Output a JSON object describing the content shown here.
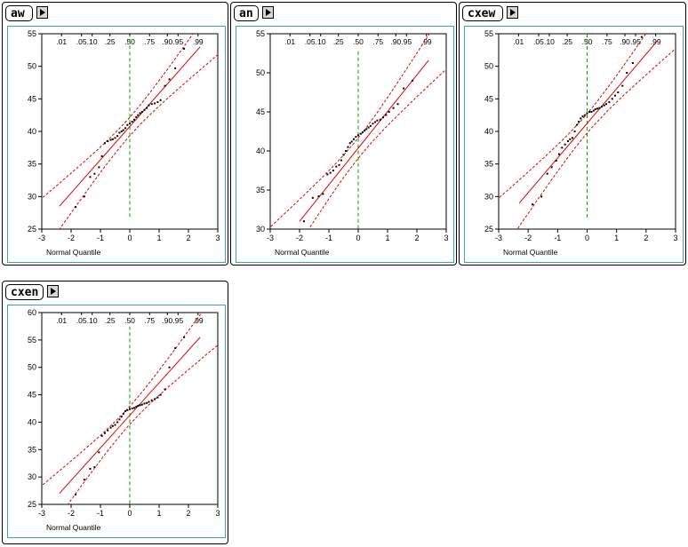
{
  "panels": [
    {
      "id": "aw",
      "title": "aw",
      "chart_data": {
        "type": "scatter",
        "xlabel": "Normal Quantile",
        "xlim": [
          -3,
          3
        ],
        "ylim": [
          25,
          55
        ],
        "xticks": [
          -3,
          -2,
          -1,
          0,
          1,
          2,
          3
        ],
        "yticks": [
          25,
          30,
          35,
          40,
          45,
          50,
          55
        ],
        "prob_ticks": [
          ".01",
          ".05",
          ".10",
          ".25",
          ".50",
          ".75",
          ".90",
          ".95",
          ".99"
        ],
        "line": [
          [
            -2.4,
            28.5
          ],
          [
            2.4,
            53.0
          ]
        ],
        "x": [
          -1.85,
          -1.55,
          -1.35,
          -1.2,
          -1.05,
          -0.95,
          -0.85,
          -0.75,
          -0.65,
          -0.58,
          -0.5,
          -0.42,
          -0.35,
          -0.28,
          -0.22,
          -0.15,
          -0.08,
          0,
          0.08,
          0.15,
          0.22,
          0.28,
          0.35,
          0.42,
          0.5,
          0.58,
          0.65,
          0.75,
          0.85,
          0.95,
          1.05,
          1.2,
          1.35,
          1.55,
          1.85
        ],
        "y": [
          28.4,
          30.0,
          33.0,
          33.5,
          34.5,
          36.2,
          38.2,
          38.5,
          38.7,
          38.8,
          39.0,
          39.3,
          39.8,
          40.0,
          40.2,
          40.5,
          41.0,
          41.2,
          41.5,
          41.8,
          42.2,
          42.5,
          42.8,
          43.0,
          43.3,
          43.6,
          44.0,
          44.2,
          44.3,
          44.5,
          44.8,
          47.0,
          48.0,
          49.7,
          52.7
        ]
      }
    },
    {
      "id": "an",
      "title": "an",
      "chart_data": {
        "type": "scatter",
        "xlabel": "Normal Quantile",
        "xlim": [
          -3,
          3
        ],
        "ylim": [
          30,
          55
        ],
        "xticks": [
          -3,
          -2,
          -1,
          0,
          1,
          2,
          3
        ],
        "yticks": [
          30,
          35,
          40,
          45,
          50,
          55
        ],
        "prob_ticks": [
          ".01",
          ".05",
          ".10",
          ".25",
          ".50",
          ".75",
          ".90",
          ".95",
          ".99"
        ],
        "line": [
          [
            -2.0,
            31.0
          ],
          [
            2.4,
            51.6
          ]
        ],
        "x": [
          -1.85,
          -1.55,
          -1.35,
          -1.2,
          -1.05,
          -0.95,
          -0.85,
          -0.75,
          -0.65,
          -0.58,
          -0.5,
          -0.42,
          -0.35,
          -0.28,
          -0.22,
          -0.15,
          -0.08,
          0,
          0.08,
          0.15,
          0.22,
          0.28,
          0.35,
          0.42,
          0.5,
          0.58,
          0.65,
          0.75,
          0.85,
          0.95,
          1.05,
          1.2,
          1.35,
          1.55,
          1.85
        ],
        "y": [
          31.0,
          34.0,
          34.2,
          34.5,
          37.0,
          37.2,
          37.5,
          38.0,
          38.2,
          38.8,
          39.5,
          40.0,
          40.5,
          41.0,
          41.2,
          41.5,
          41.8,
          42.0,
          42.2,
          42.4,
          42.6,
          42.8,
          43.0,
          43.2,
          43.5,
          43.7,
          43.9,
          44.0,
          44.3,
          44.6,
          45.0,
          45.5,
          46.0,
          48.0,
          49.0
        ]
      }
    },
    {
      "id": "cxew",
      "title": "cxew",
      "chart_data": {
        "type": "scatter",
        "xlabel": "Normal Quantile",
        "xlim": [
          -3,
          3
        ],
        "ylim": [
          25,
          55
        ],
        "xticks": [
          -3,
          -2,
          -1,
          0,
          1,
          2,
          3
        ],
        "yticks": [
          25,
          30,
          35,
          40,
          45,
          50,
          55
        ],
        "prob_ticks": [
          ".01",
          ".05",
          ".10",
          ".25",
          ".50",
          ".75",
          ".90",
          ".95",
          ".99"
        ],
        "line": [
          [
            -2.3,
            29.0
          ],
          [
            2.4,
            54.0
          ]
        ],
        "x": [
          -1.85,
          -1.55,
          -1.35,
          -1.2,
          -1.05,
          -0.95,
          -0.85,
          -0.75,
          -0.65,
          -0.58,
          -0.5,
          -0.42,
          -0.35,
          -0.28,
          -0.22,
          -0.15,
          -0.08,
          0,
          0.08,
          0.15,
          0.22,
          0.28,
          0.35,
          0.42,
          0.5,
          0.58,
          0.65,
          0.75,
          0.85,
          0.95,
          1.05,
          1.2,
          1.35,
          1.55,
          1.85
        ],
        "y": [
          28.8,
          30.0,
          33.5,
          34.5,
          35.5,
          36.5,
          37.5,
          38.0,
          38.5,
          38.8,
          39.0,
          40.0,
          41.0,
          41.5,
          42.0,
          42.3,
          42.5,
          42.8,
          43.0,
          43.0,
          43.2,
          43.4,
          43.5,
          43.6,
          43.8,
          44.0,
          44.2,
          44.5,
          45.0,
          45.5,
          46.0,
          47.0,
          49.0,
          50.5,
          54.5
        ]
      }
    },
    {
      "id": "cxen",
      "title": "cxen",
      "chart_data": {
        "type": "scatter",
        "xlabel": "Normal Quantile",
        "xlim": [
          -3,
          3
        ],
        "ylim": [
          25,
          60
        ],
        "xticks": [
          -3,
          -2,
          -1,
          0,
          1,
          2,
          3
        ],
        "yticks": [
          25,
          30,
          35,
          40,
          45,
          50,
          55,
          60
        ],
        "prob_ticks": [
          ".01",
          ".05",
          ".10",
          ".25",
          ".50",
          ".75",
          ".90",
          ".95",
          ".99"
        ],
        "line": [
          [
            -2.4,
            27.0
          ],
          [
            2.4,
            55.5
          ]
        ],
        "x": [
          -1.85,
          -1.55,
          -1.35,
          -1.2,
          -1.05,
          -0.95,
          -0.85,
          -0.75,
          -0.65,
          -0.58,
          -0.5,
          -0.42,
          -0.35,
          -0.28,
          -0.22,
          -0.15,
          -0.08,
          0,
          0.08,
          0.15,
          0.22,
          0.28,
          0.35,
          0.42,
          0.5,
          0.58,
          0.65,
          0.75,
          0.85,
          0.95,
          1.05,
          1.2,
          1.35,
          1.55,
          1.85
        ],
        "y": [
          26.8,
          29.5,
          31.5,
          31.8,
          34.5,
          37.5,
          38.0,
          38.5,
          39.0,
          39.3,
          39.5,
          40.0,
          40.5,
          41.0,
          41.5,
          42.0,
          42.2,
          42.4,
          42.5,
          42.6,
          42.8,
          43.0,
          43.1,
          43.2,
          43.4,
          43.5,
          43.7,
          44.0,
          44.2,
          44.5,
          45.0,
          46.0,
          50.0,
          53.5,
          55.5
        ]
      }
    }
  ]
}
